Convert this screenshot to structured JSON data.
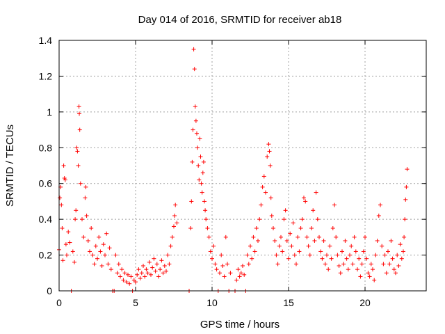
{
  "chart_data": {
    "type": "scatter",
    "title": "Day 014 of 2016, SRMTID for receiver ab18",
    "xlabel": "GPS time / hours",
    "ylabel": "SRMTID / TECUs",
    "xlim": [
      0,
      24
    ],
    "ylim": [
      0,
      1.4
    ],
    "xticks": [
      0,
      5,
      10,
      15,
      20
    ],
    "xtick_labels": [
      "0",
      "5",
      "10",
      "15",
      "20"
    ],
    "yticks": [
      0,
      0.2,
      0.4,
      0.6,
      0.8,
      1.0,
      1.2,
      1.4
    ],
    "ytick_labels": [
      "0",
      "0.2",
      "0.4",
      "0.6",
      "0.8",
      "1",
      "1.2",
      "1.4"
    ],
    "grid": true,
    "marker": "+",
    "color": "#ff0000",
    "series": [
      {
        "name": "SRMTID",
        "points": [
          [
            0.0,
            0.23
          ],
          [
            0.05,
            0.52
          ],
          [
            0.1,
            0.58
          ],
          [
            0.15,
            0.48
          ],
          [
            0.2,
            0.35
          ],
          [
            0.25,
            0.17
          ],
          [
            0.3,
            0.7
          ],
          [
            0.35,
            0.63
          ],
          [
            0.4,
            0.62
          ],
          [
            0.45,
            0.26
          ],
          [
            0.5,
            0.2
          ],
          [
            0.6,
            0.33
          ],
          [
            0.7,
            0.27
          ],
          [
            0.8,
            0.0
          ],
          [
            0.9,
            0.22
          ],
          [
            1.0,
            0.16
          ],
          [
            1.05,
            0.4
          ],
          [
            1.1,
            0.45
          ],
          [
            1.15,
            0.8
          ],
          [
            1.2,
            0.78
          ],
          [
            1.25,
            0.7
          ],
          [
            1.3,
            1.03
          ],
          [
            1.32,
            0.99
          ],
          [
            1.35,
            0.9
          ],
          [
            1.4,
            0.6
          ],
          [
            1.5,
            0.4
          ],
          [
            1.6,
            0.3
          ],
          [
            1.7,
            0.52
          ],
          [
            1.75,
            0.58
          ],
          [
            1.8,
            0.42
          ],
          [
            1.9,
            0.28
          ],
          [
            2.0,
            0.22
          ],
          [
            2.1,
            0.35
          ],
          [
            2.2,
            0.2
          ],
          [
            2.3,
            0.15
          ],
          [
            2.4,
            0.25
          ],
          [
            2.5,
            0.18
          ],
          [
            2.6,
            0.3
          ],
          [
            2.7,
            0.22
          ],
          [
            2.8,
            0.14
          ],
          [
            2.9,
            0.26
          ],
          [
            3.0,
            0.2
          ],
          [
            3.1,
            0.32
          ],
          [
            3.2,
            0.15
          ],
          [
            3.3,
            0.24
          ],
          [
            3.4,
            0.12
          ],
          [
            3.5,
            0.0
          ],
          [
            3.6,
            0.0
          ],
          [
            3.7,
            0.2
          ],
          [
            3.8,
            0.1
          ],
          [
            3.9,
            0.15
          ],
          [
            4.0,
            0.08
          ],
          [
            4.1,
            0.12
          ],
          [
            4.2,
            0.06
          ],
          [
            4.3,
            0.1
          ],
          [
            4.4,
            0.05
          ],
          [
            4.5,
            0.09
          ],
          [
            4.6,
            0.04
          ],
          [
            4.7,
            0.08
          ],
          [
            4.8,
            0.0
          ],
          [
            4.9,
            0.06
          ],
          [
            5.0,
            0.05
          ],
          [
            5.1,
            0.09
          ],
          [
            5.2,
            0.12
          ],
          [
            5.3,
            0.07
          ],
          [
            5.4,
            0.1
          ],
          [
            5.5,
            0.14
          ],
          [
            5.6,
            0.08
          ],
          [
            5.7,
            0.12
          ],
          [
            5.8,
            0.1
          ],
          [
            5.9,
            0.16
          ],
          [
            6.0,
            0.09
          ],
          [
            6.1,
            0.13
          ],
          [
            6.2,
            0.18
          ],
          [
            6.3,
            0.11
          ],
          [
            6.4,
            0.15
          ],
          [
            6.5,
            0.08
          ],
          [
            6.6,
            0.12
          ],
          [
            6.7,
            0.17
          ],
          [
            6.8,
            0.1
          ],
          [
            6.9,
            0.14
          ],
          [
            7.0,
            0.11
          ],
          [
            7.1,
            0.2
          ],
          [
            7.2,
            0.15
          ],
          [
            7.3,
            0.25
          ],
          [
            7.4,
            0.3
          ],
          [
            7.5,
            0.36
          ],
          [
            7.55,
            0.42
          ],
          [
            7.6,
            0.48
          ],
          [
            7.7,
            0.38
          ],
          [
            8.5,
            0.0
          ],
          [
            8.6,
            0.35
          ],
          [
            8.65,
            0.5
          ],
          [
            8.7,
            0.72
          ],
          [
            8.75,
            0.9
          ],
          [
            8.8,
            1.35
          ],
          [
            8.85,
            1.24
          ],
          [
            8.9,
            1.03
          ],
          [
            8.95,
            0.95
          ],
          [
            9.0,
            0.88
          ],
          [
            9.05,
            0.8
          ],
          [
            9.1,
            0.7
          ],
          [
            9.15,
            0.62
          ],
          [
            9.2,
            0.85
          ],
          [
            9.25,
            0.75
          ],
          [
            9.3,
            0.6
          ],
          [
            9.35,
            0.55
          ],
          [
            9.4,
            0.66
          ],
          [
            9.45,
            0.72
          ],
          [
            9.5,
            0.5
          ],
          [
            9.55,
            0.45
          ],
          [
            9.6,
            0.4
          ],
          [
            9.7,
            0.35
          ],
          [
            9.8,
            0.3
          ],
          [
            9.9,
            0.22
          ],
          [
            10.0,
            0.18
          ],
          [
            10.1,
            0.25
          ],
          [
            10.2,
            0.15
          ],
          [
            10.3,
            0.12
          ],
          [
            10.4,
            0.0
          ],
          [
            10.5,
            0.1
          ],
          [
            10.6,
            0.2
          ],
          [
            10.7,
            0.14
          ],
          [
            10.8,
            0.08
          ],
          [
            10.9,
            0.3
          ],
          [
            11.0,
            0.15
          ],
          [
            11.1,
            0.0
          ],
          [
            11.2,
            0.1
          ],
          [
            11.5,
            0.0
          ],
          [
            11.6,
            0.06
          ],
          [
            11.7,
            0.12
          ],
          [
            11.8,
            0.08
          ],
          [
            11.9,
            0.1
          ],
          [
            12.0,
            0.14
          ],
          [
            12.1,
            0.09
          ],
          [
            12.2,
            0.0
          ],
          [
            12.3,
            0.2
          ],
          [
            12.4,
            0.15
          ],
          [
            12.5,
            0.25
          ],
          [
            12.6,
            0.18
          ],
          [
            12.7,
            0.3
          ],
          [
            12.8,
            0.22
          ],
          [
            12.9,
            0.35
          ],
          [
            13.0,
            0.28
          ],
          [
            13.1,
            0.4
          ],
          [
            13.2,
            0.48
          ],
          [
            13.3,
            0.58
          ],
          [
            13.4,
            0.64
          ],
          [
            13.5,
            0.55
          ],
          [
            13.6,
            0.75
          ],
          [
            13.7,
            0.82
          ],
          [
            13.75,
            0.78
          ],
          [
            13.8,
            0.7
          ],
          [
            13.85,
            0.52
          ],
          [
            13.9,
            0.42
          ],
          [
            14.0,
            0.35
          ],
          [
            14.1,
            0.28
          ],
          [
            14.2,
            0.2
          ],
          [
            14.3,
            0.15
          ],
          [
            14.4,
            0.25
          ],
          [
            14.5,
            0.3
          ],
          [
            14.6,
            0.22
          ],
          [
            14.7,
            0.4
          ],
          [
            14.8,
            0.45
          ],
          [
            14.9,
            0.28
          ],
          [
            15.0,
            0.18
          ],
          [
            15.1,
            0.32
          ],
          [
            15.2,
            0.25
          ],
          [
            15.3,
            0.38
          ],
          [
            15.4,
            0.2
          ],
          [
            15.5,
            0.15
          ],
          [
            15.6,
            0.3
          ],
          [
            15.7,
            0.22
          ],
          [
            15.8,
            0.35
          ],
          [
            15.9,
            0.4
          ],
          [
            16.0,
            0.52
          ],
          [
            16.1,
            0.5
          ],
          [
            16.2,
            0.3
          ],
          [
            16.3,
            0.25
          ],
          [
            16.4,
            0.2
          ],
          [
            16.5,
            0.35
          ],
          [
            16.6,
            0.45
          ],
          [
            16.7,
            0.28
          ],
          [
            16.8,
            0.55
          ],
          [
            16.9,
            0.4
          ],
          [
            17.0,
            0.3
          ],
          [
            17.1,
            0.22
          ],
          [
            17.2,
            0.18
          ],
          [
            17.3,
            0.28
          ],
          [
            17.4,
            0.15
          ],
          [
            17.5,
            0.2
          ],
          [
            17.6,
            0.12
          ],
          [
            17.7,
            0.25
          ],
          [
            17.8,
            0.18
          ],
          [
            17.9,
            0.35
          ],
          [
            18.0,
            0.48
          ],
          [
            18.1,
            0.3
          ],
          [
            18.2,
            0.2
          ],
          [
            18.3,
            0.14
          ],
          [
            18.4,
            0.1
          ],
          [
            18.5,
            0.22
          ],
          [
            18.6,
            0.15
          ],
          [
            18.7,
            0.28
          ],
          [
            18.8,
            0.18
          ],
          [
            18.9,
            0.12
          ],
          [
            19.0,
            0.2
          ],
          [
            19.1,
            0.25
          ],
          [
            19.2,
            0.15
          ],
          [
            19.3,
            0.3
          ],
          [
            19.4,
            0.22
          ],
          [
            19.5,
            0.12
          ],
          [
            19.6,
            0.18
          ],
          [
            19.7,
            0.08
          ],
          [
            19.8,
            0.15
          ],
          [
            19.9,
            0.22
          ],
          [
            20.0,
            0.3
          ],
          [
            20.1,
            0.18
          ],
          [
            20.2,
            0.1
          ],
          [
            20.3,
            0.08
          ],
          [
            20.4,
            0.15
          ],
          [
            20.5,
            0.12
          ],
          [
            20.6,
            0.06
          ],
          [
            20.7,
            0.2
          ],
          [
            20.8,
            0.28
          ],
          [
            20.9,
            0.42
          ],
          [
            21.0,
            0.48
          ],
          [
            21.1,
            0.25
          ],
          [
            21.2,
            0.15
          ],
          [
            21.3,
            0.2
          ],
          [
            21.4,
            0.1
          ],
          [
            21.5,
            0.22
          ],
          [
            21.6,
            0.15
          ],
          [
            21.7,
            0.28
          ],
          [
            21.8,
            0.18
          ],
          [
            21.9,
            0.12
          ],
          [
            22.0,
            0.1
          ],
          [
            22.1,
            0.2
          ],
          [
            22.2,
            0.14
          ],
          [
            22.3,
            0.26
          ],
          [
            22.4,
            0.18
          ],
          [
            22.5,
            0.22
          ],
          [
            22.55,
            0.3
          ],
          [
            22.6,
            0.4
          ],
          [
            22.65,
            0.51
          ],
          [
            22.7,
            0.58
          ],
          [
            22.75,
            0.68
          ]
        ]
      }
    ]
  }
}
